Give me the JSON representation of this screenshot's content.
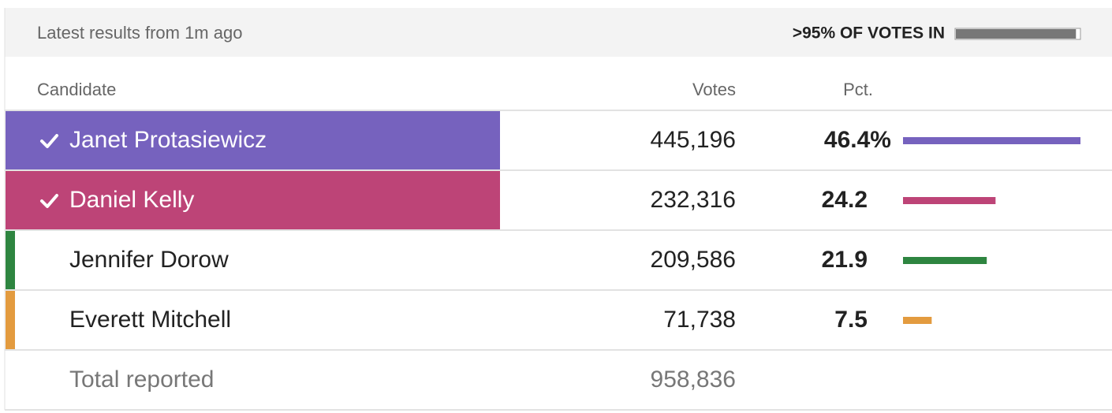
{
  "header": {
    "updated": "Latest results from 1m ago",
    "reporting": {
      "label": ">95% OF VOTES IN",
      "value": 97
    }
  },
  "table": {
    "columns": [
      "Candidate",
      "Votes",
      "Pct."
    ],
    "rows": [
      {
        "name": "Janet Protasiewicz",
        "votes": "445,196",
        "pct": 46.4,
        "pct_label": "46.4%",
        "color": "#7662be",
        "winner": true
      },
      {
        "name": "Daniel Kelly",
        "votes": "232,316",
        "pct": 24.2,
        "color": "#bd4477",
        "winner": true
      },
      {
        "name": "Jennifer Dorow",
        "votes": "209,586",
        "pct": 21.9,
        "color": "#2e8540",
        "winner": false
      },
      {
        "name": "Everett Mitchell",
        "votes": "71,738",
        "pct": 7.5,
        "color": "#e39b3f",
        "winner": false
      }
    ],
    "total": {
      "label": "Total reported",
      "votes": "958,836"
    }
  }
}
